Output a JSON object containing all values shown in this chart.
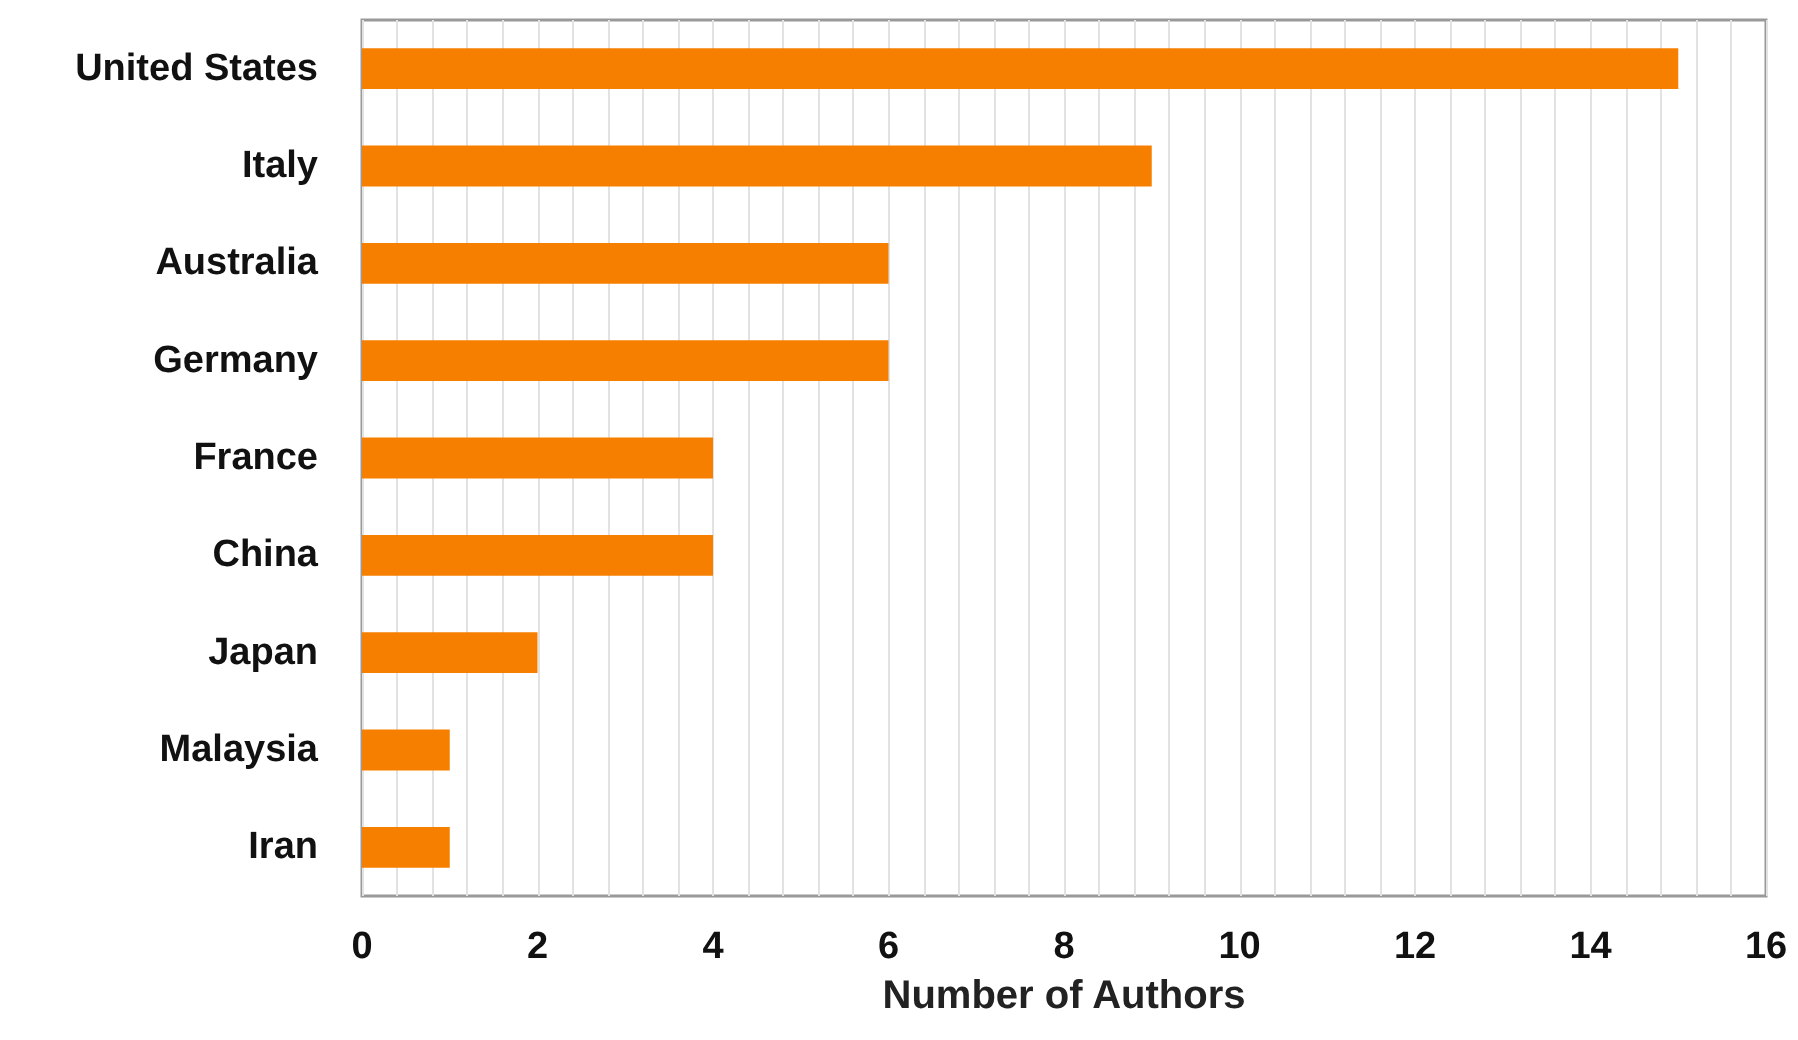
{
  "chart_data": {
    "type": "bar",
    "orientation": "horizontal",
    "xlabel": "Number of Authors",
    "categories": [
      "United States",
      "Italy",
      "Australia",
      "Germany",
      "France",
      "China",
      "Japan",
      "Malaysia",
      "Iran"
    ],
    "values": [
      15,
      9,
      6,
      6,
      4,
      4,
      2,
      1,
      1
    ],
    "color": "#f77f00",
    "xlim": [
      0,
      16
    ],
    "xticks": [
      0,
      {
        "value": 0.4,
        "label": null
      },
      {
        "value": 0.8,
        "label": null
      },
      {
        "value": 1.2,
        "label": null
      },
      {
        "value": 1.6,
        "label": null
      },
      2,
      {
        "value": 2.4,
        "label": null
      },
      {
        "value": 2.8,
        "label": null
      },
      {
        "value": 3.2,
        "label": null
      },
      {
        "value": 3.6,
        "label": null
      },
      4,
      {
        "value": 4.4,
        "label": null
      },
      {
        "value": 4.8,
        "label": null
      },
      {
        "value": 5.2,
        "label": null
      },
      {
        "value": 5.6,
        "label": null
      },
      6,
      {
        "value": 6.4,
        "label": null
      },
      {
        "value": 6.8,
        "label": null
      },
      {
        "value": 7.2,
        "label": null
      },
      {
        "value": 7.6,
        "label": null
      },
      8,
      {
        "value": 8.4,
        "label": null
      },
      {
        "value": 8.8,
        "label": null
      },
      {
        "value": 9.2,
        "label": null
      },
      {
        "value": 9.6,
        "label": null
      },
      10,
      {
        "value": 10.4,
        "label": null
      },
      {
        "value": 10.8,
        "label": null
      },
      {
        "value": 11.2,
        "label": null
      },
      {
        "value": 11.6,
        "label": null
      },
      12,
      {
        "value": 12.4,
        "label": null
      },
      {
        "value": 12.8,
        "label": null
      },
      {
        "value": 13.2,
        "label": null
      },
      {
        "value": 13.6,
        "label": null
      },
      14,
      {
        "value": 14.4,
        "label": null
      },
      {
        "value": 14.8,
        "label": null
      },
      {
        "value": 15.2,
        "label": null
      },
      {
        "value": 15.6,
        "label": null
      },
      16
    ],
    "grid": "x"
  }
}
